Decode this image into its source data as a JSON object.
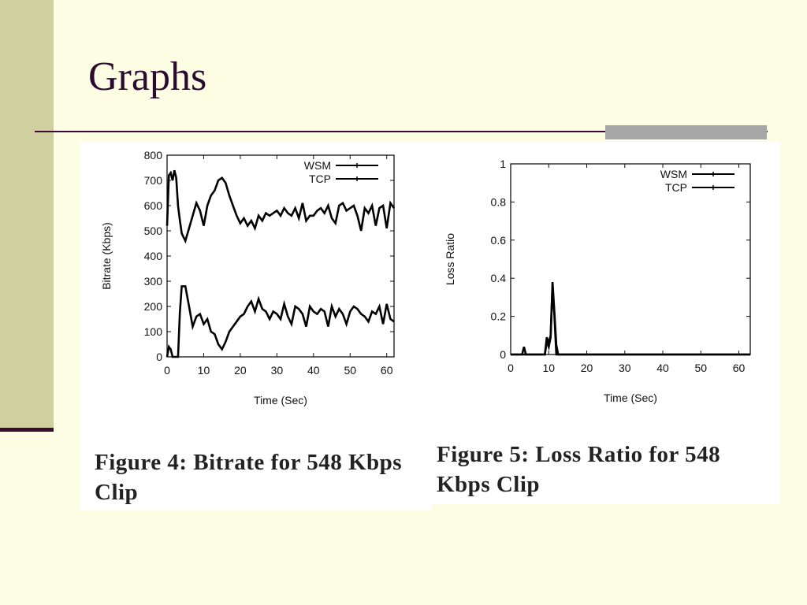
{
  "slide": {
    "title": "Graphs"
  },
  "figures": [
    {
      "caption": "Figure 4: Bitrate for 548 Kbps Clip"
    },
    {
      "caption": "Figure 5: Loss Ratio for 548 Kbps Clip"
    }
  ],
  "chart_data": [
    {
      "type": "line",
      "xlabel": "Time (Sec)",
      "ylabel": "Bitrate (Kbps)",
      "xlim": [
        0,
        62
      ],
      "ylim": [
        0,
        800
      ],
      "x_ticks": [
        0,
        10,
        20,
        30,
        40,
        50,
        60
      ],
      "y_ticks": [
        0,
        100,
        200,
        300,
        400,
        500,
        600,
        700,
        800
      ],
      "grid": false,
      "legend": "top-right",
      "series": [
        {
          "name": "WSM",
          "points": [
            [
              0,
              520
            ],
            [
              0.5,
              720
            ],
            [
              1,
              730
            ],
            [
              1.5,
              700
            ],
            [
              2,
              740
            ],
            [
              2.5,
              710
            ],
            [
              3,
              600
            ],
            [
              3.5,
              540
            ],
            [
              4,
              490
            ],
            [
              5,
              460
            ],
            [
              6,
              510
            ],
            [
              7,
              560
            ],
            [
              8,
              610
            ],
            [
              9,
              580
            ],
            [
              10,
              520
            ],
            [
              11,
              600
            ],
            [
              12,
              640
            ],
            [
              13,
              660
            ],
            [
              14,
              700
            ],
            [
              15,
              710
            ],
            [
              16,
              690
            ],
            [
              17,
              640
            ],
            [
              18,
              600
            ],
            [
              19,
              560
            ],
            [
              20,
              530
            ],
            [
              21,
              550
            ],
            [
              22,
              520
            ],
            [
              23,
              540
            ],
            [
              24,
              510
            ],
            [
              25,
              560
            ],
            [
              26,
              540
            ],
            [
              27,
              570
            ],
            [
              28,
              560
            ],
            [
              29,
              570
            ],
            [
              30,
              580
            ],
            [
              31,
              560
            ],
            [
              32,
              590
            ],
            [
              33,
              570
            ],
            [
              34,
              560
            ],
            [
              35,
              590
            ],
            [
              36,
              550
            ],
            [
              37,
              610
            ],
            [
              38,
              540
            ],
            [
              39,
              560
            ],
            [
              40,
              560
            ],
            [
              41,
              580
            ],
            [
              42,
              590
            ],
            [
              43,
              570
            ],
            [
              44,
              600
            ],
            [
              45,
              550
            ],
            [
              46,
              530
            ],
            [
              47,
              600
            ],
            [
              48,
              610
            ],
            [
              49,
              580
            ],
            [
              50,
              590
            ],
            [
              51,
              600
            ],
            [
              52,
              560
            ],
            [
              53,
              500
            ],
            [
              54,
              590
            ],
            [
              55,
              570
            ],
            [
              56,
              600
            ],
            [
              57,
              520
            ],
            [
              58,
              590
            ],
            [
              59,
              600
            ],
            [
              60,
              510
            ],
            [
              61,
              610
            ],
            [
              62,
              590
            ]
          ]
        },
        {
          "name": "TCP",
          "points": [
            [
              0,
              0
            ],
            [
              0.5,
              40
            ],
            [
              1,
              30
            ],
            [
              1.5,
              0
            ],
            [
              2,
              0
            ],
            [
              3,
              0
            ],
            [
              3.5,
              180
            ],
            [
              4,
              280
            ],
            [
              5,
              280
            ],
            [
              6,
              200
            ],
            [
              7,
              120
            ],
            [
              8,
              160
            ],
            [
              9,
              170
            ],
            [
              10,
              130
            ],
            [
              11,
              150
            ],
            [
              12,
              100
            ],
            [
              13,
              90
            ],
            [
              14,
              50
            ],
            [
              15,
              30
            ],
            [
              16,
              60
            ],
            [
              17,
              100
            ],
            [
              18,
              120
            ],
            [
              19,
              140
            ],
            [
              20,
              160
            ],
            [
              21,
              170
            ],
            [
              22,
              200
            ],
            [
              23,
              220
            ],
            [
              24,
              180
            ],
            [
              25,
              230
            ],
            [
              26,
              190
            ],
            [
              27,
              180
            ],
            [
              28,
              150
            ],
            [
              29,
              180
            ],
            [
              30,
              170
            ],
            [
              31,
              150
            ],
            [
              32,
              210
            ],
            [
              33,
              160
            ],
            [
              34,
              130
            ],
            [
              35,
              200
            ],
            [
              36,
              190
            ],
            [
              37,
              170
            ],
            [
              38,
              120
            ],
            [
              39,
              200
            ],
            [
              40,
              180
            ],
            [
              41,
              170
            ],
            [
              42,
              190
            ],
            [
              43,
              180
            ],
            [
              44,
              120
            ],
            [
              45,
              200
            ],
            [
              46,
              160
            ],
            [
              47,
              190
            ],
            [
              48,
              170
            ],
            [
              49,
              130
            ],
            [
              50,
              180
            ],
            [
              51,
              200
            ],
            [
              52,
              190
            ],
            [
              53,
              170
            ],
            [
              54,
              160
            ],
            [
              55,
              140
            ],
            [
              56,
              180
            ],
            [
              57,
              170
            ],
            [
              58,
              200
            ],
            [
              59,
              130
            ],
            [
              60,
              210
            ],
            [
              61,
              150
            ],
            [
              62,
              140
            ]
          ]
        }
      ]
    },
    {
      "type": "line",
      "xlabel": "Time (Sec)",
      "ylabel": "Loss Ratio",
      "xlim": [
        0,
        63
      ],
      "ylim": [
        0,
        1
      ],
      "x_ticks": [
        0,
        10,
        20,
        30,
        40,
        50,
        60
      ],
      "y_ticks": [
        0,
        0.2,
        0.4,
        0.6,
        0.8,
        1
      ],
      "y_tick_labels": [
        "0",
        "0.2",
        "0.4",
        "0.6",
        "0.8",
        "1"
      ],
      "grid": false,
      "legend": "top-right",
      "series": [
        {
          "name": "WSM",
          "points": [
            [
              0,
              0
            ],
            [
              3,
              0
            ],
            [
              3.5,
              0.04
            ],
            [
              4,
              0
            ],
            [
              9,
              0
            ],
            [
              9.5,
              0.09
            ],
            [
              10,
              0.06
            ],
            [
              10.5,
              0.1
            ],
            [
              11,
              0.36
            ],
            [
              11.5,
              0.2
            ],
            [
              12,
              0
            ],
            [
              63,
              0
            ]
          ]
        },
        {
          "name": "TCP",
          "points": [
            [
              0,
              0
            ],
            [
              9,
              0
            ],
            [
              9.5,
              0.07
            ],
            [
              10,
              0.04
            ],
            [
              10.5,
              0.09
            ],
            [
              11,
              0.38
            ],
            [
              11.5,
              0.22
            ],
            [
              12,
              0.05
            ],
            [
              12.5,
              0
            ],
            [
              63,
              0
            ]
          ]
        }
      ]
    }
  ]
}
